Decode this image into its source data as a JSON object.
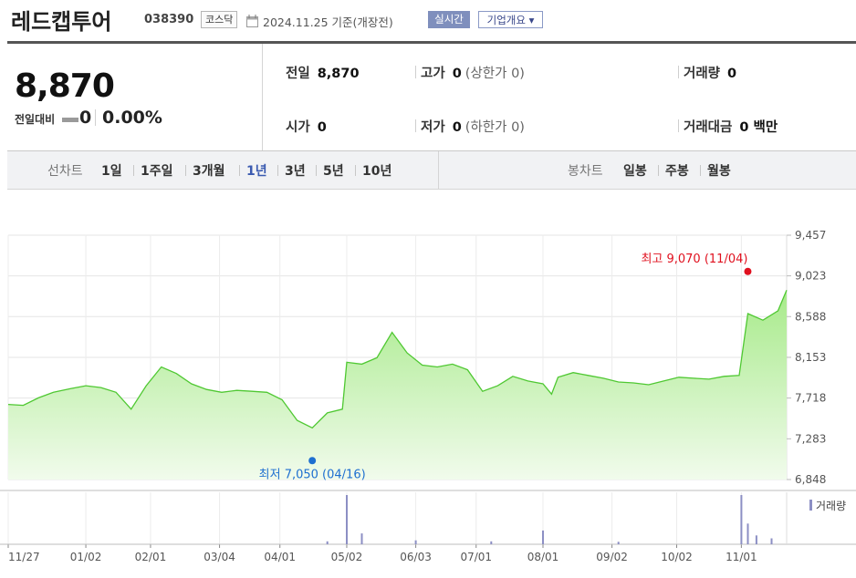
{
  "header": {
    "stock_name": "레드캡투어",
    "stock_code": "038390",
    "market": "코스닥",
    "as_of": "2024.11.25 기준(개장전)",
    "realtime_btn": "실시간",
    "company_btn": "기업개요 ▾"
  },
  "summary": {
    "current_price": "8,870",
    "change_label": "전일대비",
    "change_value": "0",
    "change_pct": "0.00%",
    "prev_close": {
      "label": "전일",
      "value": "8,870"
    },
    "high": {
      "label": "고가",
      "value": "0",
      "sub": "(상한가 0)"
    },
    "volume": {
      "label": "거래량",
      "value": "0"
    },
    "open": {
      "label": "시가",
      "value": "0"
    },
    "low": {
      "label": "저가",
      "value": "0",
      "sub": "(하한가 0)"
    },
    "trade_amount": {
      "label": "거래대금",
      "value": "0 백만"
    }
  },
  "tabs": {
    "line_label": "선차트",
    "line_periods": [
      "1일",
      "1주일",
      "3개월",
      "1년",
      "3년",
      "5년",
      "10년"
    ],
    "active_period": "1년",
    "candle_label": "봉차트",
    "candle_periods": [
      "일봉",
      "주봉",
      "월봉"
    ]
  },
  "colors": {
    "line": "#4fc832",
    "fill_top": "#a7ea8a",
    "fill_bottom": "#f1fbec",
    "max_marker": "#e0101e",
    "min_marker": "#1e6fd0",
    "volume_bar": "#8c8fc4",
    "active_tab": "#3a5ab0"
  },
  "chart_data": {
    "type": "area",
    "y_ticks": [
      "9,457",
      "9,023",
      "8,588",
      "8,153",
      "7,718",
      "7,283",
      "6,848"
    ],
    "ylim": [
      6848,
      9457
    ],
    "x_ticks": [
      "11/27",
      "01/02",
      "02/01",
      "03/04",
      "04/01",
      "05/02",
      "06/03",
      "07/01",
      "08/01",
      "09/02",
      "10/02",
      "11/01"
    ],
    "max_label": "최고 9,070 (11/04)",
    "min_label": "최저 7,050 (04/16)",
    "max": {
      "date": "11/04",
      "value": 9070
    },
    "min": {
      "date": "04/16",
      "value": 7050
    },
    "volume_label": "거래량",
    "series": [
      {
        "name": "",
        "values": [
          [
            "11/27",
            7650
          ],
          [
            "12/04",
            7640
          ],
          [
            "12/11",
            7720
          ],
          [
            "12/18",
            7780
          ],
          [
            "12/26",
            7820
          ],
          [
            "01/02",
            7850
          ],
          [
            "01/09",
            7830
          ],
          [
            "01/16",
            7780
          ],
          [
            "01/23",
            7600
          ],
          [
            "01/30",
            7850
          ],
          [
            "02/06",
            8050
          ],
          [
            "02/13",
            7980
          ],
          [
            "02/20",
            7870
          ],
          [
            "02/27",
            7810
          ],
          [
            "03/05",
            7780
          ],
          [
            "03/12",
            7800
          ],
          [
            "03/19",
            7790
          ],
          [
            "03/26",
            7780
          ],
          [
            "04/02",
            7700
          ],
          [
            "04/09",
            7480
          ],
          [
            "04/16",
            7400
          ],
          [
            "04/23",
            7560
          ],
          [
            "04/30",
            7600
          ],
          [
            "05/02",
            8100
          ],
          [
            "05/09",
            8080
          ],
          [
            "05/16",
            8150
          ],
          [
            "05/23",
            8420
          ],
          [
            "05/30",
            8200
          ],
          [
            "06/06",
            8070
          ],
          [
            "06/13",
            8050
          ],
          [
            "06/20",
            8080
          ],
          [
            "06/27",
            8020
          ],
          [
            "07/04",
            7790
          ],
          [
            "07/11",
            7850
          ],
          [
            "07/18",
            7950
          ],
          [
            "07/25",
            7900
          ],
          [
            "08/01",
            7870
          ],
          [
            "08/05",
            7760
          ],
          [
            "08/08",
            7940
          ],
          [
            "08/15",
            7990
          ],
          [
            "08/22",
            7960
          ],
          [
            "08/29",
            7930
          ],
          [
            "09/05",
            7890
          ],
          [
            "09/12",
            7880
          ],
          [
            "09/19",
            7860
          ],
          [
            "09/26",
            7900
          ],
          [
            "10/03",
            7940
          ],
          [
            "10/10",
            7930
          ],
          [
            "10/17",
            7920
          ],
          [
            "10/24",
            7950
          ],
          [
            "10/31",
            7960
          ],
          [
            "11/04",
            8620
          ],
          [
            "11/11",
            8550
          ],
          [
            "11/18",
            8650
          ],
          [
            "11/22",
            8870
          ]
        ]
      }
    ],
    "volume": [
      [
        "05/02",
        1.0
      ],
      [
        "05/09",
        0.22
      ],
      [
        "08/01",
        0.28
      ],
      [
        "11/01",
        1.0
      ],
      [
        "11/04",
        0.42
      ],
      [
        "11/08",
        0.18
      ],
      [
        "11/15",
        0.12
      ],
      [
        "06/03",
        0.08
      ],
      [
        "04/23",
        0.06
      ],
      [
        "07/08",
        0.06
      ],
      [
        "09/05",
        0.05
      ]
    ]
  }
}
